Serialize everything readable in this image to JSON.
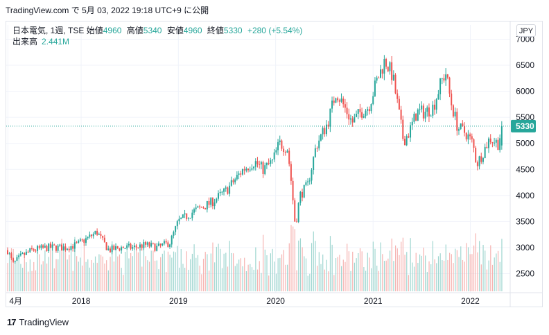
{
  "header": {
    "source": "TradingView.com",
    "date_text": "で 5月 03, 2022 19:18 UTC+9 に公開"
  },
  "legend": {
    "symbol": "日本電気, 1週, TSE",
    "open_label": "始値",
    "open": "4960",
    "high_label": "高値",
    "high": "5340",
    "low_label": "安値",
    "low": "4960",
    "close_label": "終値",
    "close": "5330",
    "change": "+280 (+5.54%)",
    "volume_label": "出来高",
    "volume": "2.441M"
  },
  "currency": "JPY",
  "last_price_label": "5330",
  "footer": {
    "brand": "TradingView",
    "logo_text": "17"
  },
  "colors": {
    "up": "#26a69a",
    "down": "#ef5350",
    "up_vol": "#9fd6d0",
    "down_vol": "#f6b3b1",
    "grid": "#f0f3fa",
    "text": "#131722"
  },
  "chart_data": {
    "type": "candlestick",
    "x_tick_labels": [
      "4月",
      "2018",
      "2019",
      "2020",
      "2021",
      "2022"
    ],
    "x_tick_dates": [
      "2017-04-01",
      "2018-01-01",
      "2019-01-01",
      "2020-01-01",
      "2021-01-01",
      "2022-01-01"
    ],
    "y_tick_labels": [
      "2500",
      "3000",
      "3500",
      "4000",
      "4500",
      "5000",
      "5500",
      "6000",
      "6500",
      "7000"
    ],
    "y_range": [
      2200,
      7100
    ],
    "last_price": 5330,
    "price_path": [
      [
        "2017-03-31",
        2950
      ],
      [
        "2017-04-20",
        2680
      ],
      [
        "2017-05-20",
        2830
      ],
      [
        "2017-07-01",
        2950
      ],
      [
        "2017-09-01",
        3000
      ],
      [
        "2017-11-01",
        3000
      ],
      [
        "2017-12-15",
        3050
      ],
      [
        "2018-02-01",
        3200
      ],
      [
        "2018-03-01",
        3300
      ],
      [
        "2018-03-25",
        3100
      ],
      [
        "2018-04-15",
        2950
      ],
      [
        "2018-06-01",
        3000
      ],
      [
        "2018-07-15",
        3000
      ],
      [
        "2018-09-01",
        3050
      ],
      [
        "2018-10-15",
        3000
      ],
      [
        "2018-12-01",
        3100
      ],
      [
        "2019-01-01",
        3500
      ],
      [
        "2019-02-01",
        3600
      ],
      [
        "2019-03-01",
        3700
      ],
      [
        "2019-05-01",
        3850
      ],
      [
        "2019-07-01",
        4100
      ],
      [
        "2019-09-01",
        4500
      ],
      [
        "2019-10-15",
        4650
      ],
      [
        "2019-11-15",
        4500
      ],
      [
        "2019-12-20",
        4650
      ],
      [
        "2020-01-15",
        5000
      ],
      [
        "2020-02-15",
        4900
      ],
      [
        "2020-03-01",
        4200
      ],
      [
        "2020-03-15",
        3400
      ],
      [
        "2020-04-01",
        4000
      ],
      [
        "2020-05-01",
        4200
      ],
      [
        "2020-06-01",
        4950
      ],
      [
        "2020-07-15",
        5400
      ],
      [
        "2020-08-15",
        6000
      ],
      [
        "2020-09-15",
        5700
      ],
      [
        "2020-10-15",
        5400
      ],
      [
        "2020-11-15",
        5600
      ],
      [
        "2020-12-15",
        5700
      ],
      [
        "2021-01-15",
        6200
      ],
      [
        "2021-02-15",
        6600
      ],
      [
        "2021-03-15",
        6300
      ],
      [
        "2021-04-01",
        5800
      ],
      [
        "2021-04-25",
        5050
      ],
      [
        "2021-05-15",
        5200
      ],
      [
        "2021-06-15",
        5600
      ],
      [
        "2021-07-15",
        5600
      ],
      [
        "2021-08-15",
        5700
      ],
      [
        "2021-09-15",
        6200
      ],
      [
        "2021-10-01",
        6350
      ],
      [
        "2021-10-20",
        5800
      ],
      [
        "2021-11-15",
        5300
      ],
      [
        "2021-12-15",
        5200
      ],
      [
        "2022-01-10",
        5000
      ],
      [
        "2022-01-25",
        4600
      ],
      [
        "2022-02-15",
        4800
      ],
      [
        "2022-03-15",
        5100
      ],
      [
        "2022-04-15",
        5000
      ],
      [
        "2022-05-02",
        5330
      ]
    ],
    "volume_range_m": [
      0,
      9.5
    ]
  }
}
